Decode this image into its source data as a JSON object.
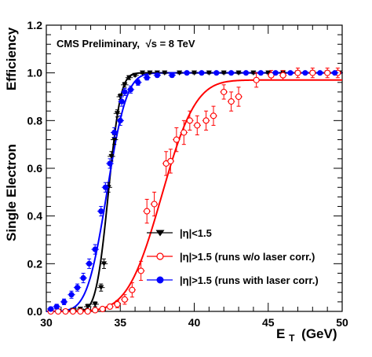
{
  "chart_data": {
    "type": "scatter",
    "annotation": "CMS Preliminary, √s = 8 TeV",
    "annotation_text": "CMS Preliminary,",
    "annotation_sqrt": "√s = 8 TeV",
    "ylabel_top": "Efficiency",
    "ylabel_bottom": "Single Electron",
    "xlabel_main": "E",
    "xlabel_sub": "T",
    "xlabel_unit": "(GeV)",
    "xlim": [
      30,
      50
    ],
    "ylim": [
      0,
      1.2
    ],
    "x_ticks": [
      30,
      35,
      40,
      45,
      50
    ],
    "x_tick_labels": [
      "30",
      "35",
      "40",
      "45",
      "50"
    ],
    "y_ticks": [
      0,
      0.2,
      0.4,
      0.6,
      0.8,
      1.0,
      1.2
    ],
    "y_tick_labels": [
      "0.0",
      "0.2",
      "0.4",
      "0.6",
      "0.8",
      "1.0",
      "1.2"
    ],
    "grid": false,
    "legend_position": "bottom-right",
    "series": [
      {
        "name": "|η|<1.5",
        "color": "#000000",
        "marker": "triangle-down-filled",
        "fit_color": "#000000",
        "fit": {
          "plateau": 1.0,
          "mu": 34.2,
          "sigma": 0.65
        },
        "points": [
          {
            "x": 30.3,
            "y": 0.0,
            "err": 0.005
          },
          {
            "x": 30.8,
            "y": 0.0,
            "err": 0.005
          },
          {
            "x": 31.3,
            "y": 0.0,
            "err": 0.005
          },
          {
            "x": 31.8,
            "y": 0.005,
            "err": 0.005
          },
          {
            "x": 32.3,
            "y": 0.01,
            "err": 0.008
          },
          {
            "x": 32.8,
            "y": 0.02,
            "err": 0.01
          },
          {
            "x": 33.3,
            "y": 0.03,
            "err": 0.01
          },
          {
            "x": 33.7,
            "y": 0.1,
            "err": 0.015
          },
          {
            "x": 33.9,
            "y": 0.2,
            "err": 0.02
          },
          {
            "x": 34.2,
            "y": 0.52,
            "err": 0.02
          },
          {
            "x": 34.4,
            "y": 0.65,
            "err": 0.02
          },
          {
            "x": 34.6,
            "y": 0.72,
            "err": 0.02
          },
          {
            "x": 34.8,
            "y": 0.83,
            "err": 0.015
          },
          {
            "x": 35.0,
            "y": 0.9,
            "err": 0.012
          },
          {
            "x": 35.3,
            "y": 0.95,
            "err": 0.01
          },
          {
            "x": 35.6,
            "y": 0.98,
            "err": 0.008
          },
          {
            "x": 36.0,
            "y": 0.99,
            "err": 0.005
          },
          {
            "x": 36.5,
            "y": 1.0,
            "err": 0.004
          },
          {
            "x": 37.0,
            "y": 1.0,
            "err": 0.004
          },
          {
            "x": 37.5,
            "y": 1.0,
            "err": 0.004
          },
          {
            "x": 38.0,
            "y": 1.0,
            "err": 0.004
          },
          {
            "x": 39.0,
            "y": 1.0,
            "err": 0.004
          },
          {
            "x": 40.0,
            "y": 1.0,
            "err": 0.004
          },
          {
            "x": 41.0,
            "y": 1.0,
            "err": 0.004
          },
          {
            "x": 42.0,
            "y": 1.0,
            "err": 0.004
          },
          {
            "x": 43.0,
            "y": 1.0,
            "err": 0.004
          },
          {
            "x": 44.0,
            "y": 1.0,
            "err": 0.004
          },
          {
            "x": 45.0,
            "y": 1.0,
            "err": 0.004
          },
          {
            "x": 46.0,
            "y": 1.0,
            "err": 0.004
          },
          {
            "x": 47.0,
            "y": 1.0,
            "err": 0.004
          },
          {
            "x": 48.0,
            "y": 1.0,
            "err": 0.004
          },
          {
            "x": 49.0,
            "y": 1.0,
            "err": 0.004
          },
          {
            "x": 49.8,
            "y": 1.0,
            "err": 0.004
          }
        ]
      },
      {
        "name": "|η|>1.5 (runs w/o laser corr.)",
        "color": "#ff0000",
        "marker": "circle-open",
        "fit_color": "#ff0000",
        "fit": {
          "plateau": 0.97,
          "mu": 37.8,
          "sigma": 1.8
        },
        "points": [
          {
            "x": 30.3,
            "y": 0.0,
            "err": 0.005
          },
          {
            "x": 30.8,
            "y": 0.0,
            "err": 0.005
          },
          {
            "x": 31.3,
            "y": 0.0,
            "err": 0.005
          },
          {
            "x": 31.8,
            "y": 0.0,
            "err": 0.005
          },
          {
            "x": 32.3,
            "y": 0.0,
            "err": 0.005
          },
          {
            "x": 32.8,
            "y": 0.0,
            "err": 0.005
          },
          {
            "x": 33.3,
            "y": 0.005,
            "err": 0.006
          },
          {
            "x": 33.8,
            "y": 0.01,
            "err": 0.008
          },
          {
            "x": 34.3,
            "y": 0.02,
            "err": 0.01
          },
          {
            "x": 34.8,
            "y": 0.03,
            "err": 0.015
          },
          {
            "x": 35.3,
            "y": 0.05,
            "err": 0.02
          },
          {
            "x": 35.8,
            "y": 0.09,
            "err": 0.03
          },
          {
            "x": 36.4,
            "y": 0.17,
            "err": 0.04
          },
          {
            "x": 36.8,
            "y": 0.42,
            "err": 0.05
          },
          {
            "x": 37.3,
            "y": 0.45,
            "err": 0.05
          },
          {
            "x": 38.1,
            "y": 0.62,
            "err": 0.05
          },
          {
            "x": 38.4,
            "y": 0.63,
            "err": 0.05
          },
          {
            "x": 38.8,
            "y": 0.72,
            "err": 0.05
          },
          {
            "x": 39.3,
            "y": 0.75,
            "err": 0.05
          },
          {
            "x": 39.7,
            "y": 0.8,
            "err": 0.04
          },
          {
            "x": 40.2,
            "y": 0.78,
            "err": 0.04
          },
          {
            "x": 40.8,
            "y": 0.8,
            "err": 0.04
          },
          {
            "x": 41.3,
            "y": 0.82,
            "err": 0.04
          },
          {
            "x": 42.0,
            "y": 0.92,
            "err": 0.03
          },
          {
            "x": 42.5,
            "y": 0.88,
            "err": 0.04
          },
          {
            "x": 43.0,
            "y": 0.9,
            "err": 0.04
          },
          {
            "x": 44.2,
            "y": 0.97,
            "err": 0.03
          },
          {
            "x": 45.2,
            "y": 0.99,
            "err": 0.02
          },
          {
            "x": 46.0,
            "y": 0.99,
            "err": 0.02
          },
          {
            "x": 47.0,
            "y": 1.0,
            "err": 0.02
          },
          {
            "x": 48.0,
            "y": 1.0,
            "err": 0.02
          },
          {
            "x": 49.0,
            "y": 1.0,
            "err": 0.02
          },
          {
            "x": 49.7,
            "y": 1.0,
            "err": 0.02
          }
        ]
      },
      {
        "name": "|η|>1.5 (runs with laser corr.)",
        "color": "#0000ff",
        "marker": "circle-filled",
        "fit_color": "#0000ff",
        "fit": {
          "plateau": 1.0,
          "mu": 34.1,
          "sigma": 1.05
        },
        "points": [
          {
            "x": 30.3,
            "y": 0.01,
            "err": 0.008
          },
          {
            "x": 30.7,
            "y": 0.02,
            "err": 0.01
          },
          {
            "x": 31.2,
            "y": 0.04,
            "err": 0.012
          },
          {
            "x": 31.7,
            "y": 0.07,
            "err": 0.015
          },
          {
            "x": 32.1,
            "y": 0.1,
            "err": 0.015
          },
          {
            "x": 32.5,
            "y": 0.14,
            "err": 0.02
          },
          {
            "x": 32.9,
            "y": 0.2,
            "err": 0.02
          },
          {
            "x": 33.3,
            "y": 0.26,
            "err": 0.02
          },
          {
            "x": 33.7,
            "y": 0.42,
            "err": 0.02
          },
          {
            "x": 34.0,
            "y": 0.52,
            "err": 0.02
          },
          {
            "x": 34.3,
            "y": 0.62,
            "err": 0.02
          },
          {
            "x": 34.6,
            "y": 0.75,
            "err": 0.02
          },
          {
            "x": 35.0,
            "y": 0.8,
            "err": 0.02
          },
          {
            "x": 35.1,
            "y": 0.88,
            "err": 0.02
          },
          {
            "x": 35.3,
            "y": 0.92,
            "err": 0.015
          },
          {
            "x": 35.7,
            "y": 0.93,
            "err": 0.015
          },
          {
            "x": 36.2,
            "y": 0.96,
            "err": 0.012
          },
          {
            "x": 36.8,
            "y": 0.98,
            "err": 0.01
          },
          {
            "x": 37.5,
            "y": 0.99,
            "err": 0.008
          },
          {
            "x": 38.5,
            "y": 0.99,
            "err": 0.008
          },
          {
            "x": 39.5,
            "y": 1.0,
            "err": 0.006
          },
          {
            "x": 40.5,
            "y": 1.0,
            "err": 0.006
          },
          {
            "x": 41.5,
            "y": 1.0,
            "err": 0.006
          },
          {
            "x": 42.5,
            "y": 1.0,
            "err": 0.006
          },
          {
            "x": 43.5,
            "y": 1.0,
            "err": 0.006
          },
          {
            "x": 44.5,
            "y": 1.0,
            "err": 0.006
          },
          {
            "x": 45.5,
            "y": 1.0,
            "err": 0.006
          },
          {
            "x": 46.5,
            "y": 1.0,
            "err": 0.006
          },
          {
            "x": 47.5,
            "y": 1.0,
            "err": 0.006
          },
          {
            "x": 48.5,
            "y": 1.0,
            "err": 0.006
          },
          {
            "x": 49.5,
            "y": 1.0,
            "err": 0.006
          }
        ]
      }
    ]
  }
}
